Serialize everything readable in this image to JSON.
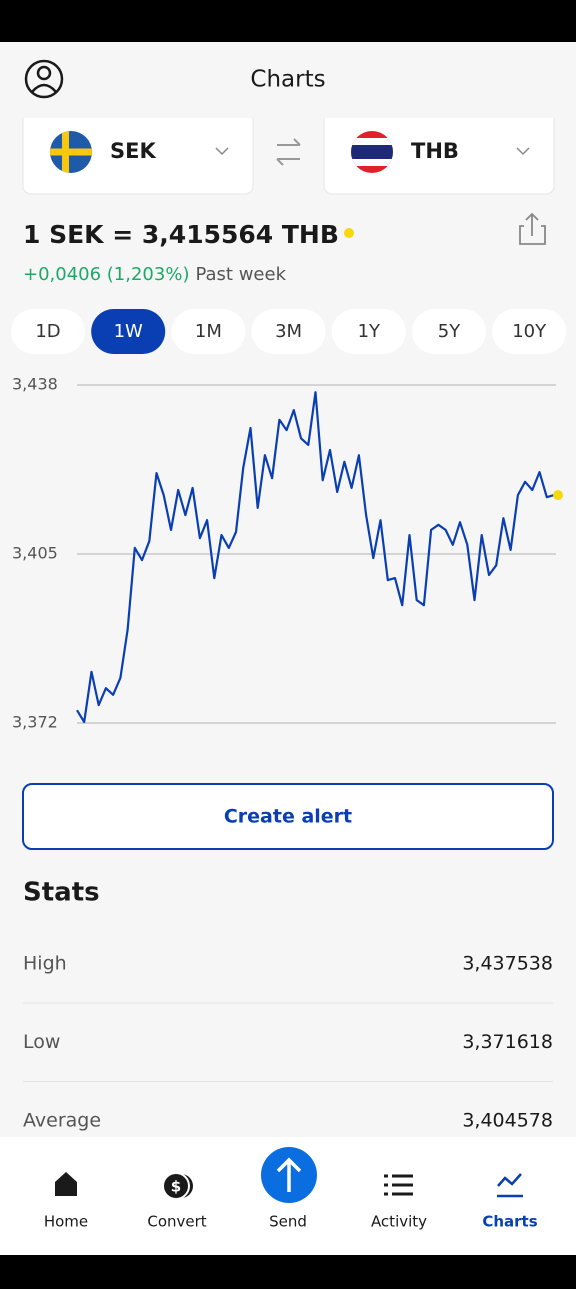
{
  "header": {
    "title": "Charts"
  },
  "pair": {
    "from": "SEK",
    "to": "THB"
  },
  "rate": "1 SEK = 3,415564 THB",
  "change": {
    "value": "+0,0406 (1,203%)",
    "period": "Past week"
  },
  "ranges": {
    "options": [
      "1D",
      "1W",
      "1M",
      "3M",
      "1Y",
      "5Y",
      "10Y"
    ],
    "selected": "1W"
  },
  "chart_data": {
    "type": "line",
    "color": "#0a3fb3",
    "values": [
      3.3745,
      3.3722,
      3.382,
      3.3755,
      3.3788,
      3.3775,
      3.3808,
      3.3902,
      3.4062,
      3.4038,
      3.4075,
      3.4208,
      3.4165,
      3.4097,
      3.4175,
      3.4126,
      3.4179,
      3.4081,
      3.4116,
      3.4003,
      3.4087,
      3.4062,
      3.4093,
      3.4218,
      3.4296,
      3.414,
      3.4243,
      3.4198,
      3.4312,
      3.4292,
      3.4331,
      3.4276,
      3.4263,
      3.4366,
      3.4194,
      3.4253,
      3.4171,
      3.423,
      3.4179,
      3.4243,
      3.4126,
      3.4042,
      3.4116,
      3.3999,
      3.4003,
      3.395,
      3.4087,
      3.396,
      3.395,
      3.4097,
      3.4107,
      3.4097,
      3.4068,
      3.4112,
      3.4068,
      3.396,
      3.4087,
      3.4009,
      3.4028,
      3.412,
      3.4058,
      3.4165,
      3.4191,
      3.4175,
      3.421,
      3.4161,
      3.4165
    ],
    "ylim": [
      3.372,
      3.438
    ],
    "yticks": [
      {
        "value": 3.438,
        "label": "3,438"
      },
      {
        "value": 3.405,
        "label": "3,405"
      },
      {
        "value": 3.372,
        "label": "3,372"
      }
    ],
    "grid": true
  },
  "button": "Create alert",
  "stats": {
    "title": "Stats",
    "rows": [
      [
        "High",
        "3,437538"
      ],
      [
        "Low",
        "3,371618"
      ],
      [
        "Average",
        "3,404578"
      ]
    ]
  },
  "nav": {
    "items": [
      "Home",
      "Convert",
      "Send",
      "Activity",
      "Charts"
    ],
    "active": "Charts"
  }
}
